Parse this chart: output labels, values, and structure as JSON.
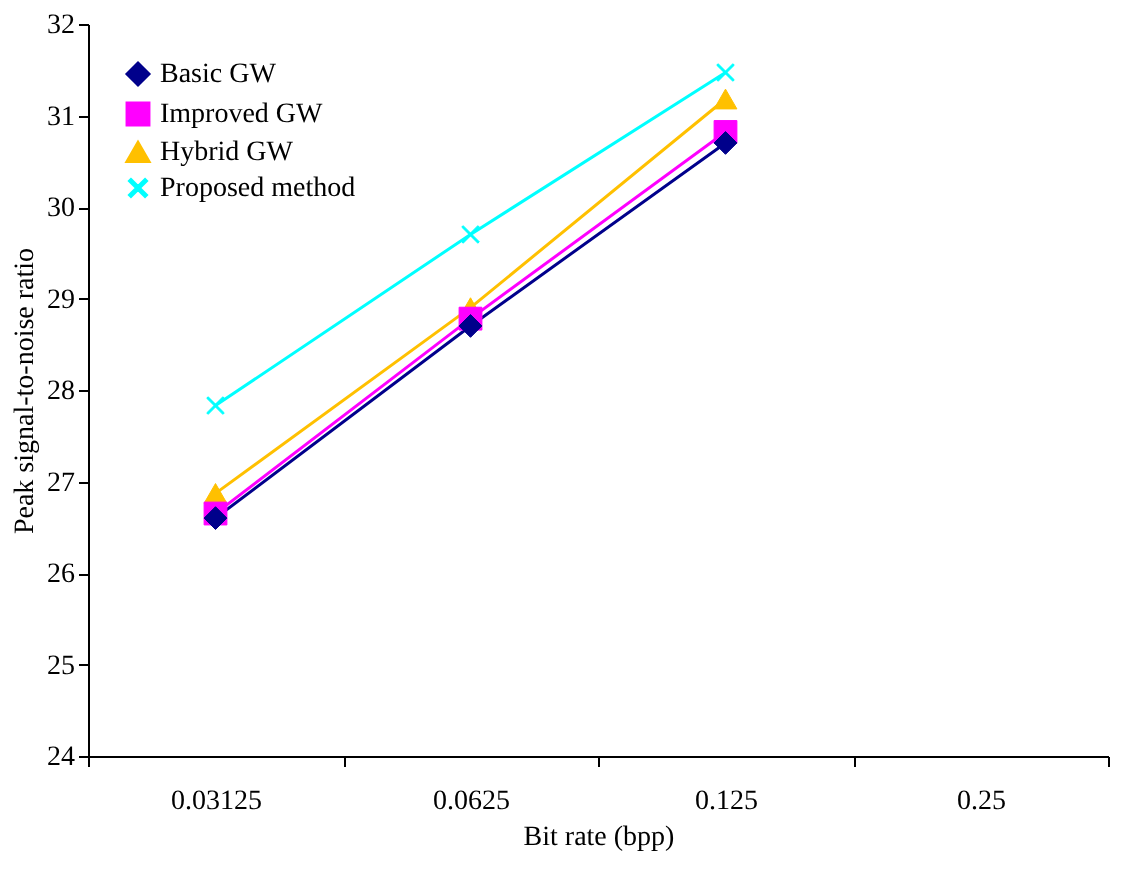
{
  "chart_data": {
    "type": "line",
    "xlabel": "Bit rate (bpp)",
    "ylabel": "Peak signal-to-noise ratio",
    "categories": [
      "0.03125",
      "0.0625",
      "0.125",
      "0.25"
    ],
    "series": [
      {
        "name": "Basic GW",
        "color": "#00008b",
        "marker": "diamond",
        "values": [
          26.6,
          28.7,
          30.7,
          null
        ]
      },
      {
        "name": "Improved GW",
        "color": "#ff00ff",
        "marker": "square",
        "values": [
          26.65,
          28.78,
          30.82,
          null
        ]
      },
      {
        "name": "Hybrid GW",
        "color": "#ffc000",
        "marker": "triangle",
        "values": [
          26.87,
          28.9,
          31.18,
          null
        ]
      },
      {
        "name": "Proposed method",
        "color": "#00ffff",
        "marker": "cross",
        "values": [
          27.83,
          29.7,
          31.47,
          null
        ]
      }
    ],
    "ylim": [
      24,
      32
    ],
    "yticks": [
      24,
      25,
      26,
      27,
      28,
      29,
      30,
      31,
      32
    ],
    "grid": false,
    "legend": "top left"
  }
}
